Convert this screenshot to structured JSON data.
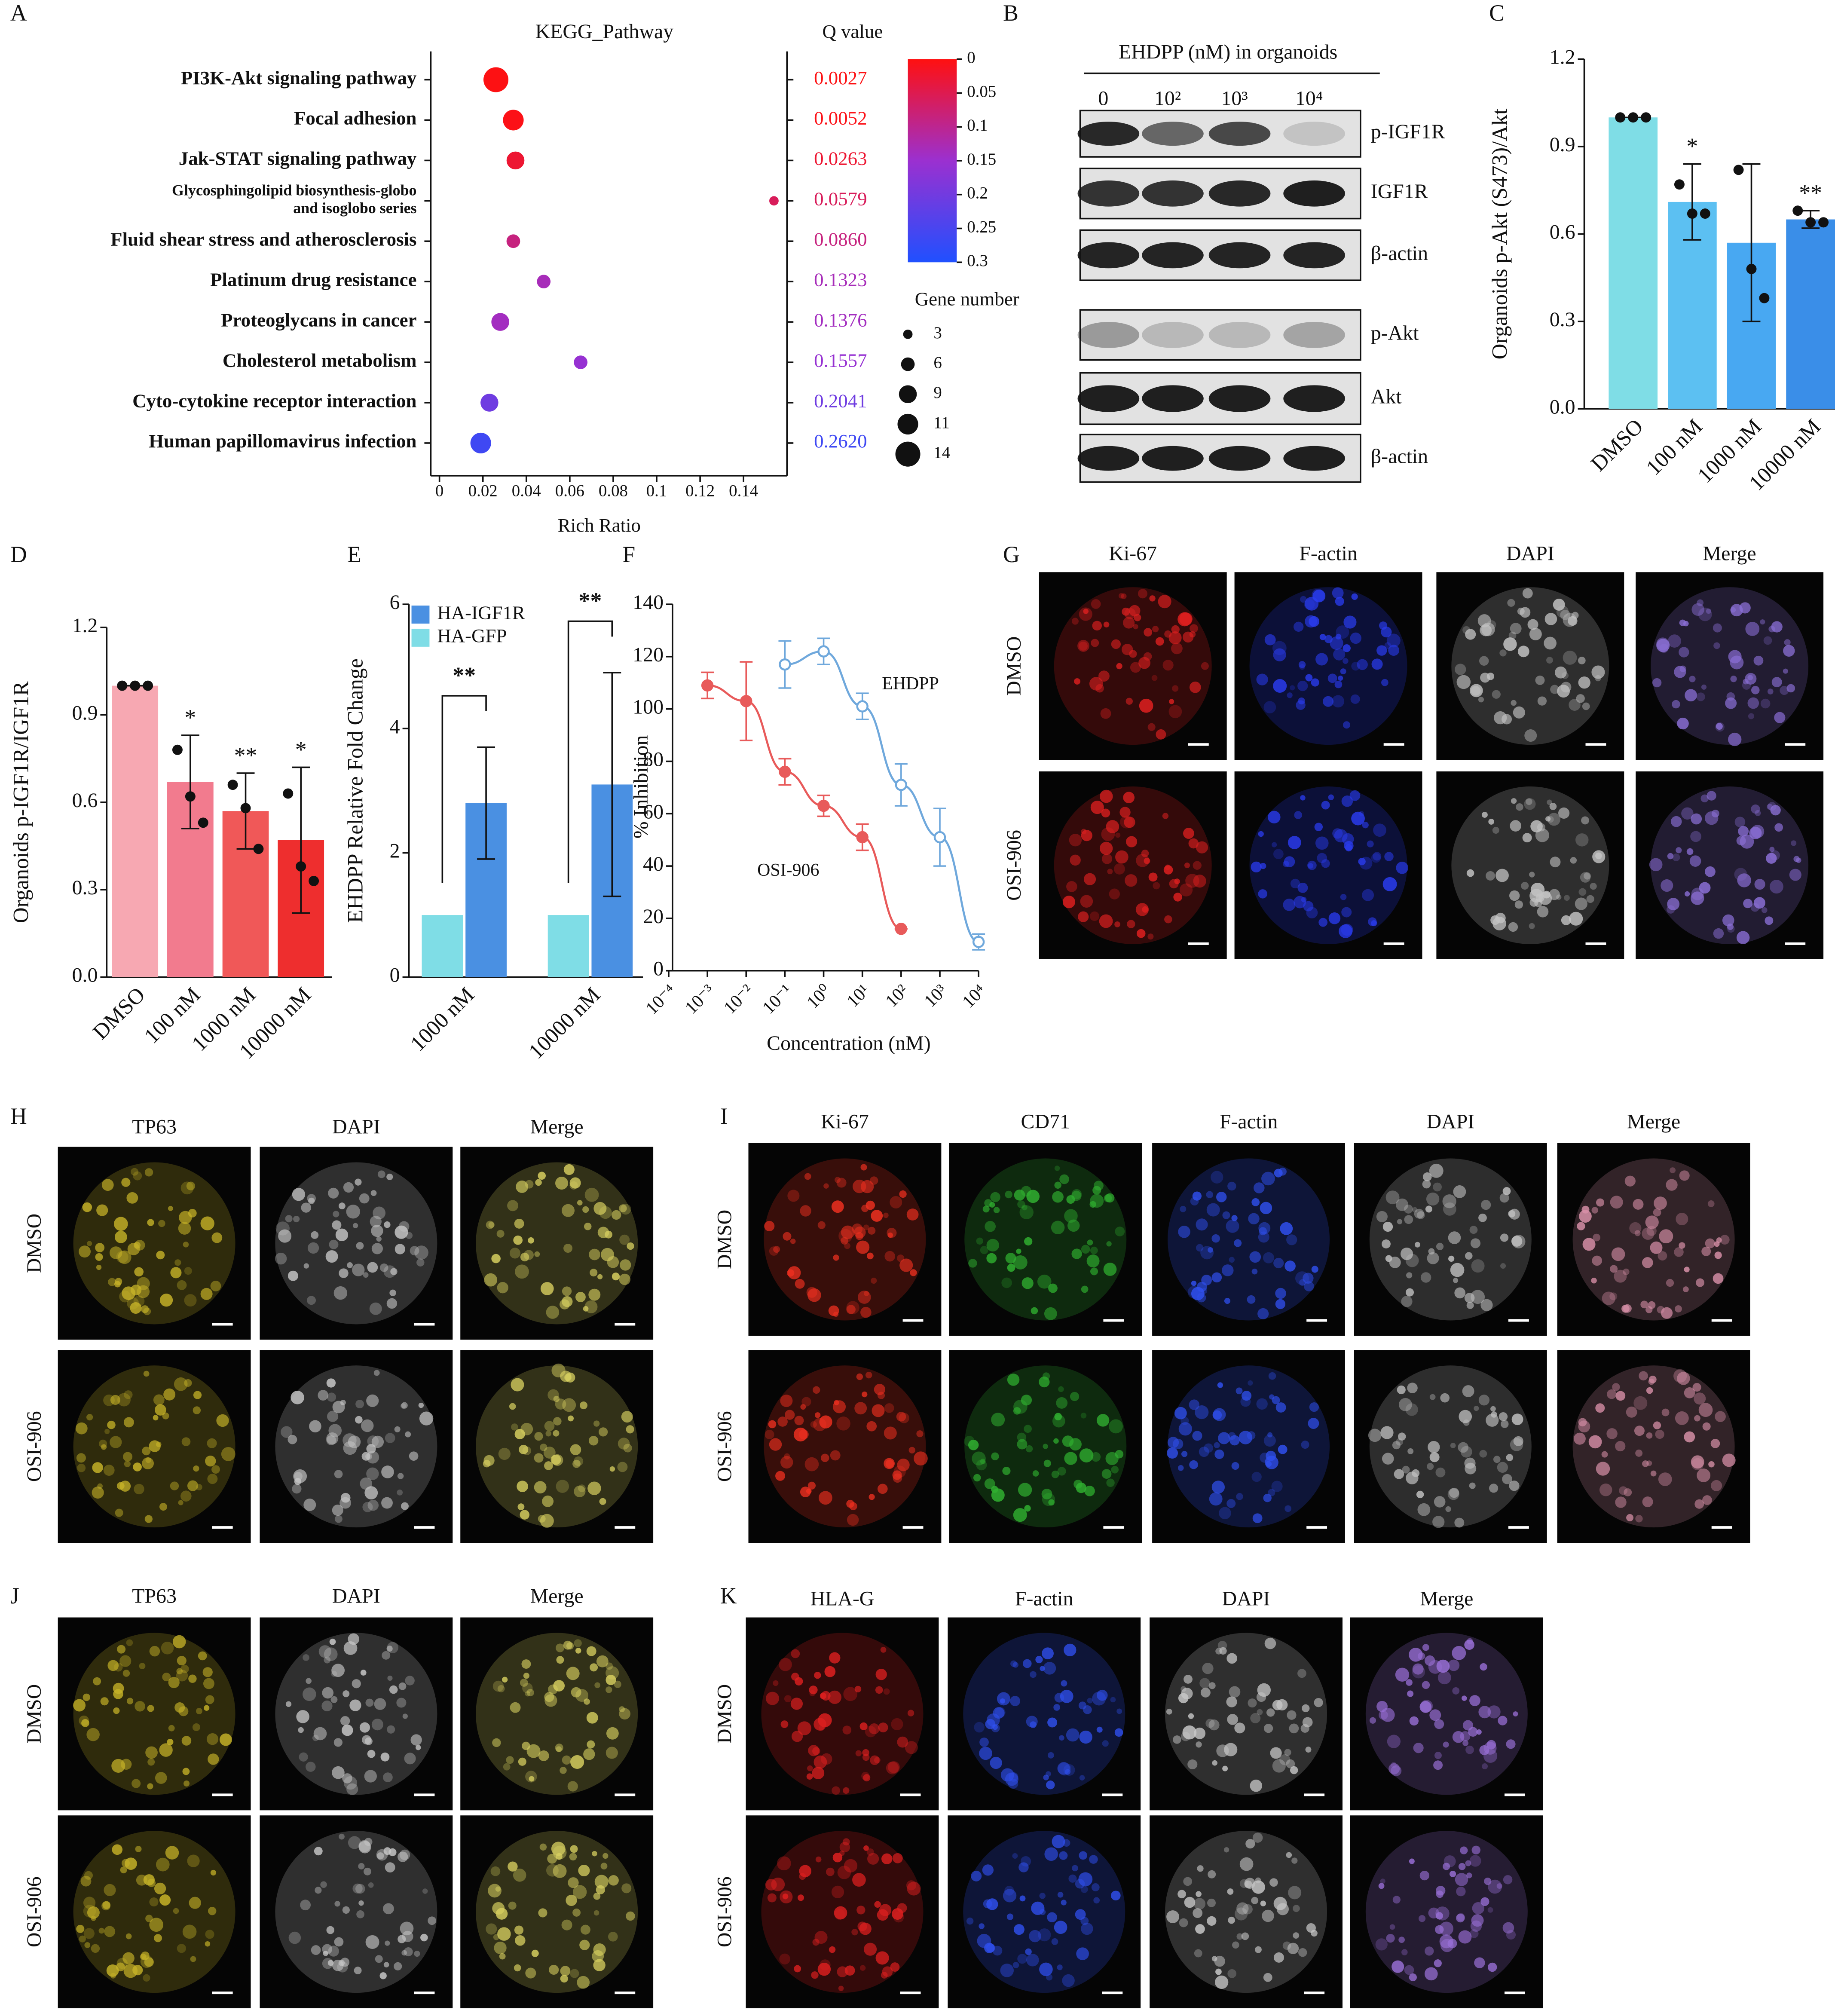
{
  "chart_data": [
    {
      "label": "A",
      "type": "dot",
      "title": "KEGG_Pathway",
      "categories": [
        "PI3K-Akt signaling pathway",
        "Focal adhesion",
        "Jak-STAT signaling pathway",
        "Glycosphingolipid biosynthesis-globo and isoglobo series",
        "Fluid shear stress and atherosclerosis",
        "Platinum drug resistance",
        "Proteoglycans in cancer",
        "Cholesterol metabolism",
        "Cyto-cytokine receptor interaction",
        "Human papillomavirus infection"
      ],
      "x": [
        0.026,
        0.034,
        0.035,
        0.154,
        0.034,
        0.048,
        0.028,
        0.065,
        0.023,
        0.019
      ],
      "values": [
        0.0027,
        0.0052,
        0.0263,
        0.0579,
        0.086,
        0.1323,
        0.1376,
        0.1557,
        0.2041,
        0.262
      ],
      "value_labels": [
        "0.0027",
        "0.0052",
        "0.0263",
        "0.0579",
        "0.0860",
        "0.1323",
        "0.1376",
        "0.1557",
        "0.2041",
        "0.2620"
      ],
      "sizes": [
        14,
        11,
        9,
        3,
        6,
        6,
        9,
        6,
        9,
        11
      ],
      "x_label": "Rich Ratio",
      "xlim": [
        -0.004,
        0.16
      ],
      "xticks": [
        0,
        0.02,
        0.04,
        0.06,
        0.08,
        0.1,
        0.12,
        0.14
      ],
      "color_title": "Q value",
      "color_lim": [
        0,
        0.3
      ],
      "color_ticks": [
        0,
        0.05,
        0.1,
        0.15,
        0.2,
        0.25,
        0.3
      ],
      "colors": [
        "#ff1010",
        "#9b30d0",
        "#2050ff"
      ],
      "size_title": "Gene number",
      "size_legend": [
        3,
        6,
        9,
        11,
        14
      ]
    },
    {
      "label": "C",
      "type": "bar",
      "y_label": "Organoids p-Akt (S473)/Akt",
      "categories": [
        "DMSO",
        "100 nM",
        "1000 nM",
        "10000 nM"
      ],
      "values": [
        1,
        0.71,
        0.57,
        0.65
      ],
      "errors": [
        0,
        0.13,
        0.27,
        0.03
      ],
      "points": [
        [
          1,
          1,
          1
        ],
        [
          0.77,
          0.67,
          0.67
        ],
        [
          0.82,
          0.48,
          0.38
        ],
        [
          0.68,
          0.64,
          0.64
        ]
      ],
      "significance": [
        null,
        "*",
        null,
        "**"
      ],
      "colors": [
        "#7fdde6",
        "#5cc0f2",
        "#48a8f2",
        "#3a8ee8"
      ],
      "ylim": [
        0,
        1.2
      ],
      "yticks": [
        {
          "value": 0,
          "label": "0.0"
        },
        0.3,
        0.6,
        0.9,
        1.2
      ]
    },
    {
      "label": "D",
      "type": "bar",
      "y_label": "Organoids p-IGF1R/IGF1R",
      "categories": [
        "DMSO",
        "100 nM",
        "1000 nM",
        "10000 nM"
      ],
      "values": [
        1,
        0.67,
        0.57,
        0.47
      ],
      "errors": [
        0,
        0.16,
        0.13,
        0.25
      ],
      "points": [
        [
          1,
          1,
          1
        ],
        [
          0.78,
          0.62,
          0.53
        ],
        [
          0.66,
          0.58,
          0.44
        ],
        [
          0.63,
          0.38,
          0.33
        ]
      ],
      "significance": [
        null,
        "*",
        "**",
        "*"
      ],
      "colors": [
        "#f7a8b2",
        "#f27b8e",
        "#f05858",
        "#ee2e2e"
      ],
      "ylim": [
        0,
        1.2
      ],
      "yticks": [
        {
          "value": 0,
          "label": "0.0"
        },
        0.3,
        0.6,
        0.9,
        1.2
      ]
    },
    {
      "label": "E",
      "type": "grouped_bar",
      "y_label": "EHDPP Relative Fold Change",
      "categories": [
        "1000 nM",
        "10000 nM"
      ],
      "series": [
        {
          "name": "HA-IGF1R",
          "color": "#4a90e2",
          "values": [
            2.8,
            3.1
          ],
          "errors": [
            0.9,
            1.8
          ]
        },
        {
          "name": "HA-GFP",
          "color": "#7fdde6",
          "values": [
            1,
            1
          ]
        }
      ],
      "significance": [
        "**",
        "**"
      ],
      "ylim": [
        0,
        6
      ],
      "yticks": [
        0,
        2,
        4,
        6
      ]
    },
    {
      "label": "F",
      "type": "line",
      "x_label": "Concentration (nM)",
      "y_label": "% Inhibition",
      "log_x": true,
      "xlim": [
        0.0001,
        10000
      ],
      "xticks": [
        {
          "value": 0.0001,
          "label": "10⁻⁴"
        },
        {
          "value": 0.001,
          "label": "10⁻³"
        },
        {
          "value": 0.01,
          "label": "10⁻²"
        },
        {
          "value": 0.1,
          "label": "10⁻¹"
        },
        {
          "value": 1,
          "label": "10⁰"
        },
        {
          "value": 10,
          "label": "10¹"
        },
        {
          "value": 100,
          "label": "10²"
        },
        {
          "value": 1000,
          "label": "10³"
        },
        {
          "value": 10000,
          "label": "10⁴"
        }
      ],
      "ylim": [
        0,
        140
      ],
      "yticks": [
        0,
        20,
        40,
        60,
        80,
        100,
        120,
        140
      ],
      "series": [
        {
          "name": "EHDPP",
          "color": "#6fa8dc",
          "marker": "open",
          "x": [
            0.1,
            1,
            10,
            100,
            1000,
            10000
          ],
          "values": [
            117,
            122,
            101,
            71,
            51,
            11
          ],
          "errors": [
            9,
            5,
            5,
            8,
            11,
            3
          ]
        },
        {
          "name": "OSI-906",
          "color": "#e85a5a",
          "marker": "filled",
          "x": [
            0.001,
            0.01,
            0.1,
            1,
            10,
            100
          ],
          "values": [
            109,
            103,
            76,
            63,
            51,
            16
          ],
          "errors": [
            5,
            15,
            5,
            4,
            5,
            0
          ]
        }
      ]
    }
  ],
  "blot": {
    "label": "B",
    "title": "EHDPP (nM) in organoids",
    "lanes": [
      "0",
      "10²",
      "10³",
      "10⁴"
    ],
    "bands": [
      "p-IGF1R",
      "IGF1R",
      "β-actin",
      "p-Akt",
      "Akt",
      "β-actin"
    ]
  },
  "image_panels": [
    {
      "label": "G",
      "columns": [
        "Ki-67",
        "F-actin",
        "DAPI",
        "Merge"
      ],
      "rows": [
        "DMSO",
        "OSI-906"
      ],
      "colors": [
        "#e02020",
        "#2a3cf0",
        "#c4c4c4",
        "#8c70d8"
      ]
    },
    {
      "label": "H",
      "columns": [
        "TP63",
        "DAPI",
        "Merge"
      ],
      "rows": [
        "DMSO",
        "OSI-906"
      ],
      "colors": [
        "#c8b428",
        "#c8c8c8",
        "#d8d060"
      ]
    },
    {
      "label": "I",
      "columns": [
        "Ki-67",
        "CD71",
        "F-actin",
        "DAPI",
        "Merge"
      ],
      "rows": [
        "DMSO",
        "OSI-906"
      ],
      "colors": [
        "#f03020",
        "#30b030",
        "#3050f0",
        "#c0c0c0",
        "#d890a8"
      ]
    },
    {
      "label": "J",
      "columns": [
        "TP63",
        "DAPI",
        "Merge"
      ],
      "rows": [
        "DMSO",
        "OSI-906"
      ],
      "colors": [
        "#c8b428",
        "#c8c8c8",
        "#d8d060"
      ]
    },
    {
      "label": "K",
      "columns": [
        "HLA-G",
        "F-actin",
        "DAPI",
        "Merge"
      ],
      "rows": [
        "DMSO",
        "OSI-906"
      ],
      "colors": [
        "#e02020",
        "#3050f0",
        "#c8c8c8",
        "#9a70d8"
      ]
    }
  ]
}
